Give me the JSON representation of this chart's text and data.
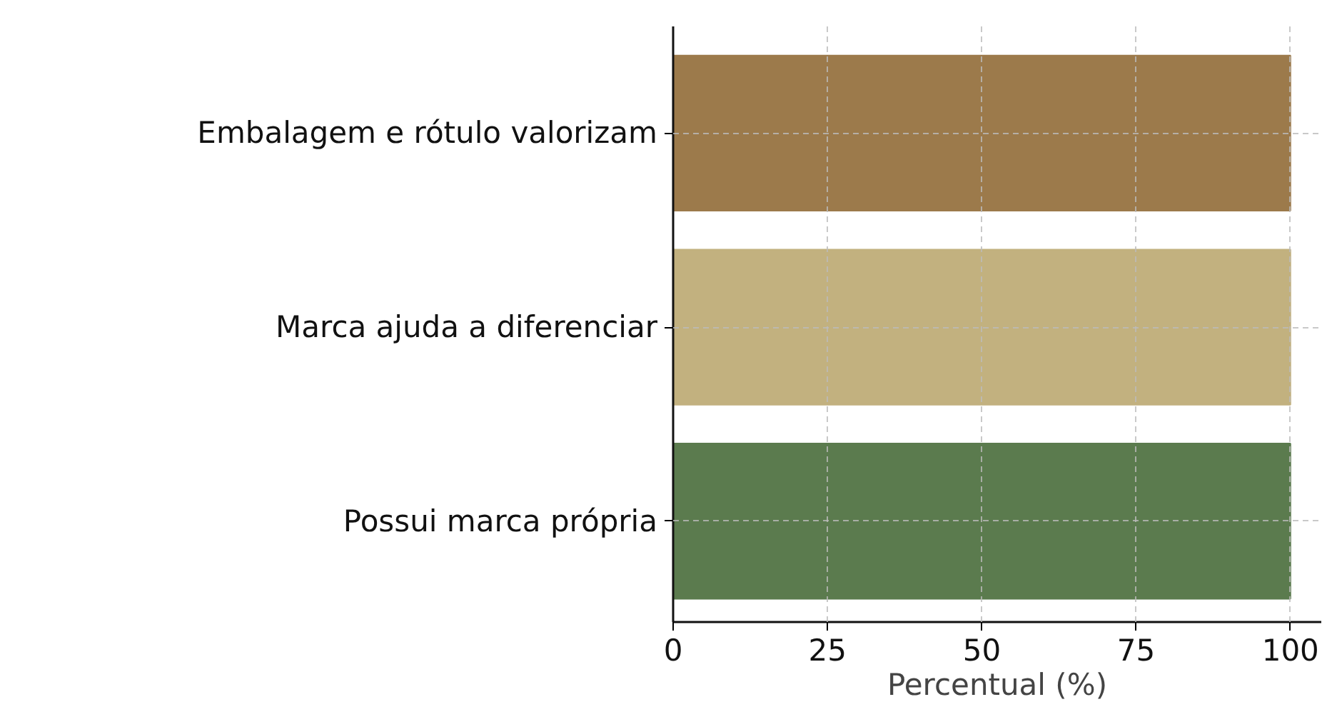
{
  "chart_data": {
    "type": "bar",
    "orientation": "horizontal",
    "xlabel": "Percentual (%)",
    "categories": [
      "Embalagem e rótulo valorizam",
      "Marca ajuda a diferenciar",
      "Possui marca própria"
    ],
    "values": [
      100,
      100,
      100
    ],
    "colors": [
      "#9c7a4b",
      "#c2b17f",
      "#5b7b4e"
    ],
    "xlim": [
      0,
      105
    ],
    "xticks": [
      0,
      25,
      50,
      75,
      100
    ],
    "grid": true
  }
}
